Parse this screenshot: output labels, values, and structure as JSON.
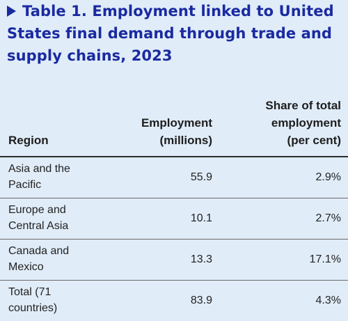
{
  "title": "Table 1. Employment linked to United States final demand through trade and supply chains, 2023",
  "table": {
    "headers": {
      "region": "Region",
      "employment_line1": "Employment",
      "employment_line2": "(millions)",
      "share_line1": "Share of total",
      "share_line2": "employment",
      "share_line3": "(per cent)"
    },
    "rows": [
      {
        "region": "Asia and the Pacific",
        "employment": "55.9",
        "share": "2.9%"
      },
      {
        "region": "Europe and Central Asia",
        "employment": "10.1",
        "share": "2.7%"
      },
      {
        "region": "Canada and Mexico",
        "employment": "13.3",
        "share": "17.1%"
      },
      {
        "region": "Total (71 countries)",
        "employment": "83.9",
        "share": "4.3%"
      }
    ]
  }
}
